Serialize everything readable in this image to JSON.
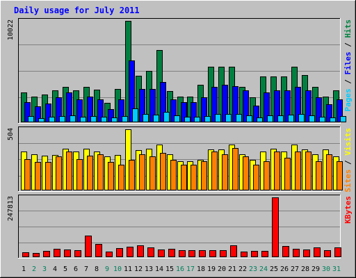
{
  "chart_data": {
    "type": "bar",
    "title": "Daily usage for July 2011",
    "categories": [
      "1",
      "2",
      "3",
      "4",
      "5",
      "6",
      "7",
      "8",
      "9",
      "10",
      "11",
      "12",
      "13",
      "14",
      "15",
      "16",
      "17",
      "18",
      "19",
      "20",
      "21",
      "22",
      "23",
      "24",
      "25",
      "26",
      "27",
      "28",
      "29",
      "30",
      "31"
    ],
    "weekend_days": [
      "2",
      "3",
      "9",
      "10",
      "16",
      "17",
      "23",
      "24",
      "30",
      "31"
    ],
    "panels": [
      {
        "id": "traffic",
        "ymax": 10022,
        "ymax_label": "10022",
        "side_labels": [
          {
            "text": "Pages",
            "color": "#00CCFF"
          },
          {
            "text": " / ",
            "color": "#000000"
          },
          {
            "text": "Files",
            "color": "#0000FF"
          },
          {
            "text": " / ",
            "color": "#000000"
          },
          {
            "text": "Hits",
            "color": "#008040"
          }
        ],
        "series": [
          {
            "name": "Hits",
            "color": "#008040",
            "values": [
              2940,
              2540,
              2760,
              3180,
              3480,
              3170,
              3520,
              3260,
              1930,
              3300,
              10022,
              4620,
              5080,
              7120,
              3100,
              2560,
              2560,
              3700,
              5480,
              5480,
              5480,
              3480,
              2500,
              4560,
              4560,
              4560,
              5460,
              4660,
              3480,
              2560,
              3180
            ]
          },
          {
            "name": "Files",
            "color": "#0000FF",
            "values": [
              1960,
              1560,
              1860,
              2460,
              2940,
              2250,
              2560,
              2250,
              1300,
              2250,
              6080,
              3300,
              3300,
              4000,
              2250,
              1960,
              1960,
              2460,
              3500,
              3700,
              3560,
              3180,
              1660,
              2940,
              3180,
              3180,
              3480,
              3180,
              2460,
              1760,
              2250
            ]
          },
          {
            "name": "Pages",
            "color": "#00CCFF",
            "values": [
              630,
              440,
              560,
              600,
              660,
              570,
              650,
              580,
              470,
              590,
              1350,
              810,
              760,
              1000,
              700,
              560,
              560,
              620,
              790,
              790,
              820,
              720,
              510,
              700,
              700,
              760,
              820,
              700,
              570,
              500,
              600
            ]
          }
        ]
      },
      {
        "id": "visitors",
        "ymax": 504,
        "ymax_label": "504",
        "side_labels": [
          {
            "text": "Sites",
            "color": "#FF8000"
          },
          {
            "text": " / ",
            "color": "#000000"
          },
          {
            "text": "Visits",
            "color": "#FFFF00"
          }
        ],
        "series": [
          {
            "name": "Visits",
            "color": "#FFFF00",
            "values": [
              320,
              300,
              285,
              290,
              342,
              320,
              342,
              320,
              280,
              290,
              504,
              330,
              342,
              380,
              300,
              240,
              240,
              250,
              340,
              340,
              380,
              300,
              250,
              320,
              345,
              320,
              380,
              340,
              300,
              340,
              280
            ]
          },
          {
            "name": "Sites",
            "color": "#FF8000",
            "values": [
              255,
              235,
              235,
              280,
              320,
              255,
              285,
              295,
              235,
              210,
              250,
              295,
              280,
              310,
              250,
              210,
              210,
              240,
              320,
              300,
              350,
              280,
              210,
              240,
              320,
              270,
              320,
              320,
              240,
              300,
              240
            ]
          }
        ]
      },
      {
        "id": "kbytes",
        "ymax": 247813,
        "ymax_label": "247813",
        "side_labels": [
          {
            "text": "KBytes",
            "color": "#FF0000"
          }
        ],
        "series": [
          {
            "name": "KBytes",
            "color": "#FF0000",
            "values": [
              21000,
              17000,
              25000,
              36000,
              31000,
              30000,
              90000,
              55000,
              24000,
              38000,
              44000,
              49000,
              39000,
              33000,
              36000,
              29000,
              29000,
              28000,
              28000,
              29000,
              49000,
              24000,
              25000,
              25000,
              247813,
              47000,
              34000,
              33000,
              39000,
              28000,
              39000
            ]
          }
        ]
      }
    ],
    "grid": true,
    "legend_position": "right-vertical"
  }
}
